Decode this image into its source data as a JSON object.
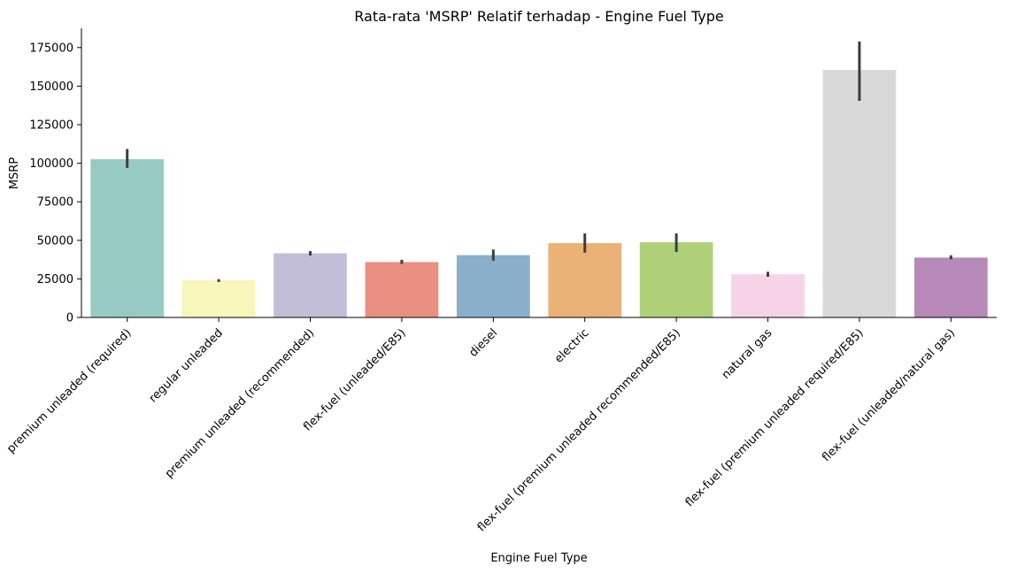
{
  "chart_data": {
    "type": "bar",
    "title": "Rata-rata 'MSRP' Relatif terhadap - Engine Fuel Type",
    "xlabel": "Engine Fuel Type",
    "ylabel": "MSRP",
    "ylim": [
      0,
      187500
    ],
    "yticks": [
      0,
      25000,
      50000,
      75000,
      100000,
      125000,
      150000,
      175000
    ],
    "ytick_labels": [
      "0",
      "25000",
      "50000",
      "75000",
      "100000",
      "125000",
      "150000",
      "175000"
    ],
    "categories": [
      "premium unleaded (required)",
      "regular unleaded",
      "premium unleaded (recommended)",
      "flex-fuel (unleaded/E85)",
      "diesel",
      "electric",
      "flex-fuel (premium unleaded recommended/E85)",
      "natural gas",
      "flex-fuel (premium unleaded required/E85)",
      "flex-fuel (unleaded/natural gas)"
    ],
    "values": [
      102600,
      24000,
      41600,
      35900,
      40400,
      48200,
      48800,
      28000,
      160500,
      38800
    ],
    "ci_low": [
      97000,
      23000,
      40200,
      34700,
      36800,
      42000,
      42500,
      26400,
      140500,
      37700
    ],
    "ci_high": [
      109200,
      24800,
      43000,
      37400,
      44000,
      54500,
      54500,
      29600,
      179000,
      40300
    ],
    "colors": [
      "#97cac2",
      "#f7f6bb",
      "#c3bed7",
      "#ea8f82",
      "#8aafcb",
      "#eab276",
      "#afd079",
      "#f6d3e6",
      "#d9d9d9",
      "#b689b9"
    ],
    "grid": false,
    "legend": "none"
  }
}
